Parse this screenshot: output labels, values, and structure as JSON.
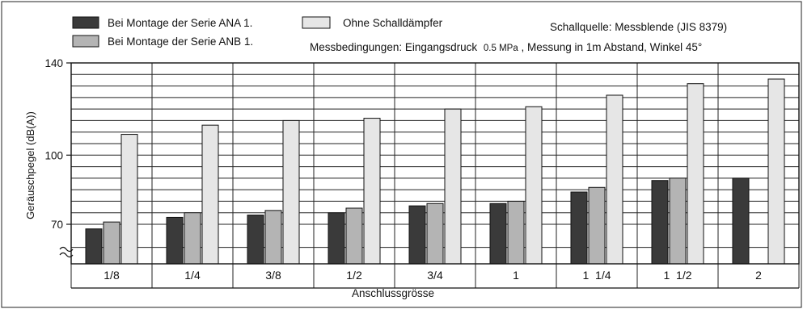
{
  "chart_data": {
    "type": "bar",
    "title": "",
    "xlabel": "Anschlussgrösse",
    "ylabel": "Geräuschpegel (dB(A))",
    "categories": [
      "1/8",
      "1/4",
      "3/8",
      "1/2",
      "3/4",
      "1",
      "1  1/4",
      "1  1/2",
      "2"
    ],
    "series": [
      {
        "name": "Bei Montage der Serie ANA 1.",
        "color": "#3a3a3a",
        "values": [
          68,
          73,
          74,
          75,
          78,
          79,
          84,
          89,
          90
        ]
      },
      {
        "name": "Bei Montage der Serie ANB 1.",
        "color": "#b4b4b4",
        "values": [
          71,
          75,
          76,
          77,
          79,
          80,
          86,
          90,
          null
        ]
      },
      {
        "name": "Ohne Schalldämpfer",
        "color": "#e6e6e6",
        "values": [
          109,
          113,
          115,
          116,
          120,
          121,
          126,
          131,
          133
        ]
      }
    ],
    "yticks": [
      70,
      100,
      140
    ],
    "ylim": [
      57,
      140
    ],
    "grid": true,
    "legend_position": "top",
    "annotations": [
      "Schallquelle: Messblende  (JIS 8379)",
      "Messbedingungen: Eingangsdruck",
      "0.5 MPa",
      ", Messung in 1m Abstand, Winkel 45°"
    ]
  }
}
